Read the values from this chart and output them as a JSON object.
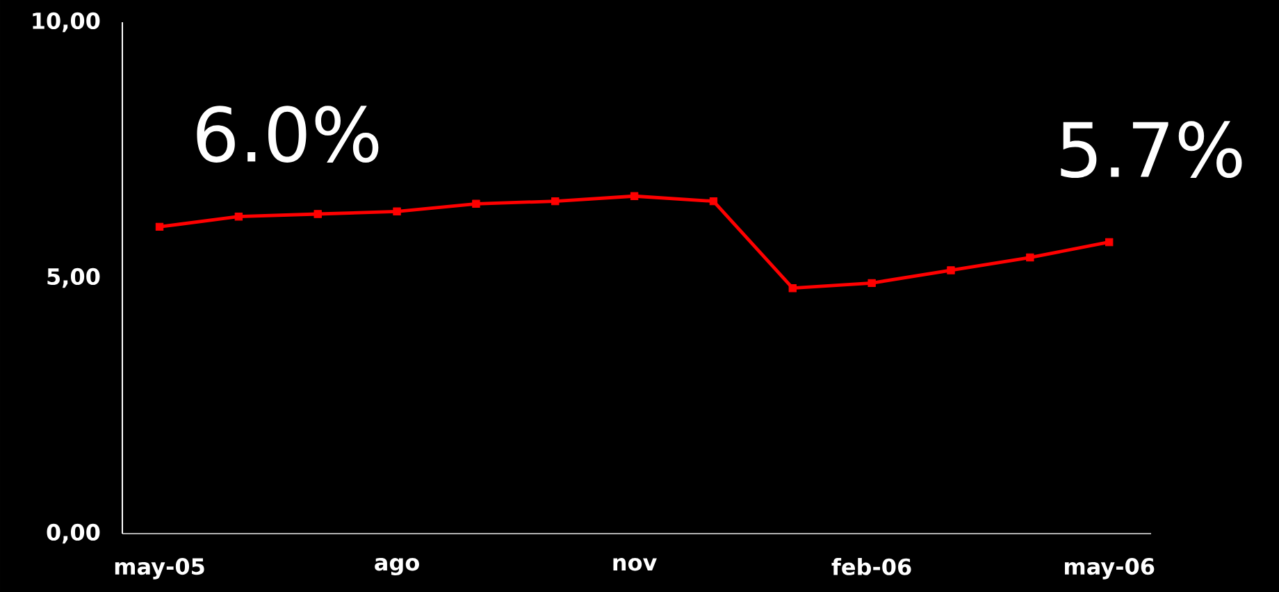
{
  "chart_data": {
    "type": "line",
    "categories": [
      "may-05",
      null,
      null,
      "ago",
      null,
      null,
      "nov",
      null,
      null,
      "feb-06",
      null,
      null,
      "may-06"
    ],
    "series": [
      {
        "color": "#ff0000",
        "values": [
          6.0,
          6.2,
          6.25,
          6.3,
          6.45,
          6.5,
          6.6,
          6.5,
          4.8,
          4.9,
          5.15,
          5.4,
          5.7
        ]
      }
    ],
    "ylim": [
      0,
      10
    ],
    "yticks": [
      {
        "value": 0,
        "label": "0,00"
      },
      {
        "value": 5,
        "label": "5,00"
      },
      {
        "value": 10,
        "label": "10,00"
      }
    ],
    "marker": "square",
    "line_style": "solid",
    "annotations": [
      {
        "text": "6.0%",
        "x": "may-05",
        "y": 6.0
      },
      {
        "text": "5.7%",
        "x": "may-06",
        "y": 5.7
      }
    ]
  }
}
